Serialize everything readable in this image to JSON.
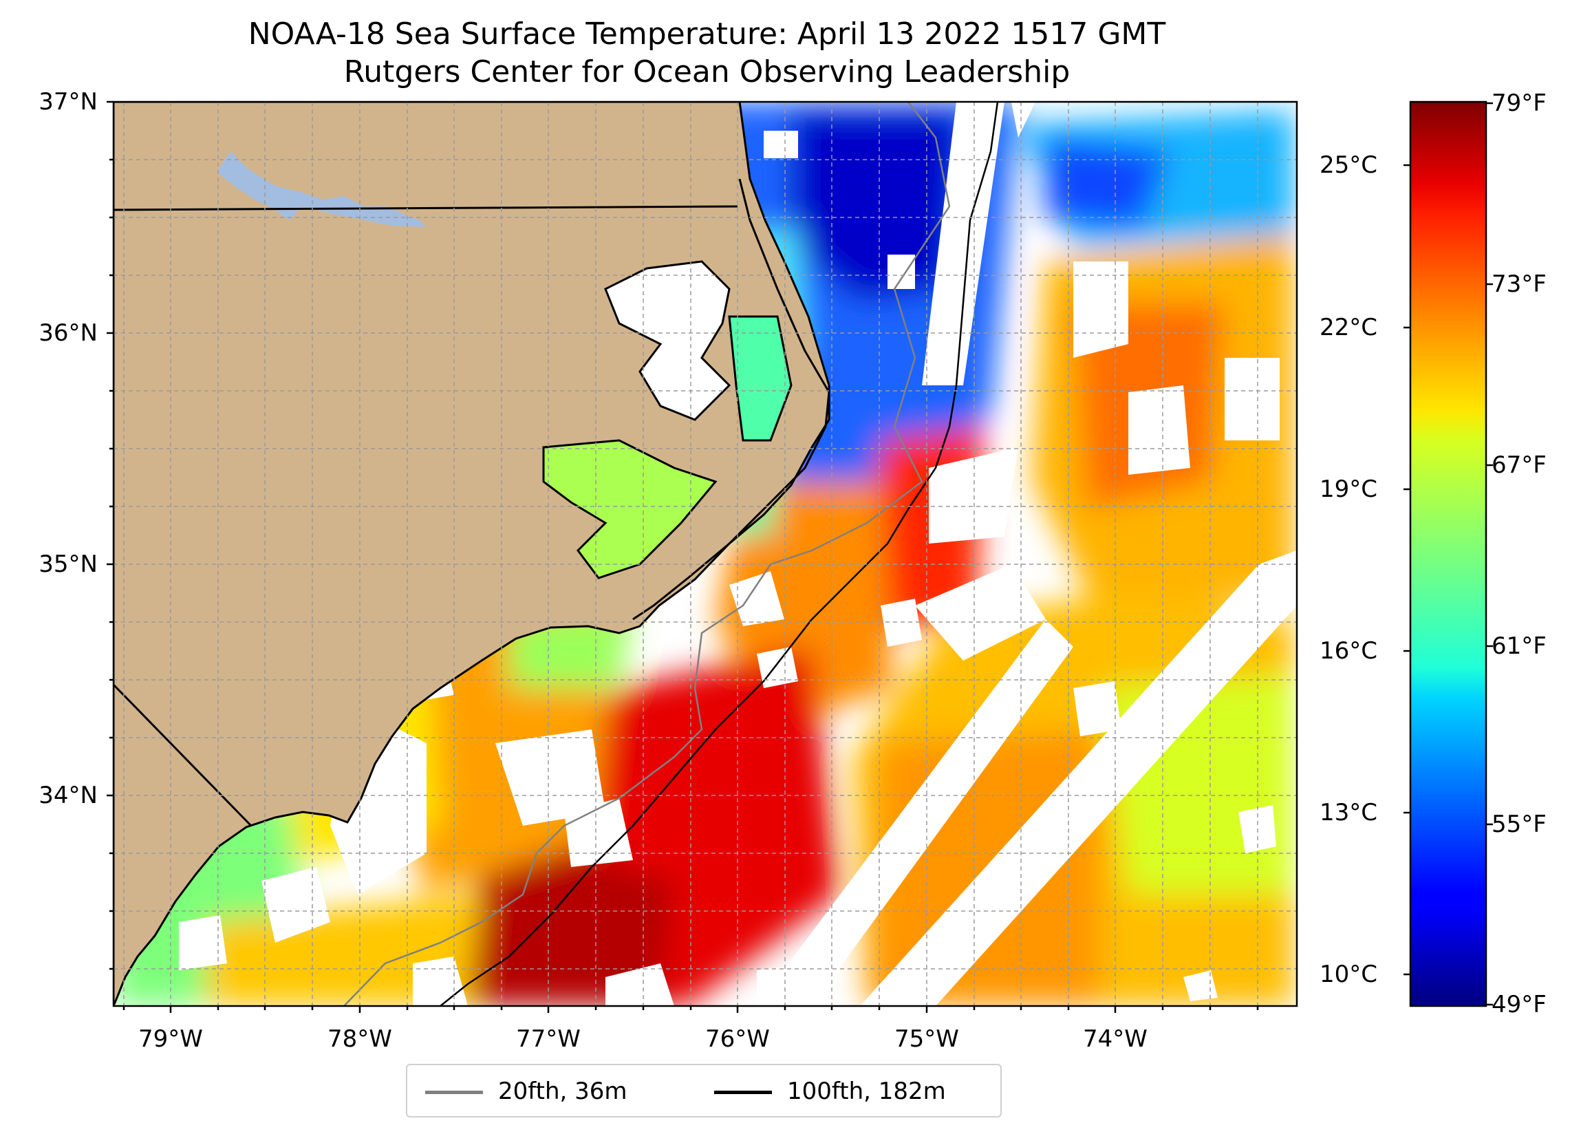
{
  "title": "NOAA-18 Sea Surface Temperature: April 13 2022 1517 GMT",
  "subtitle": "Rutgers Center for Ocean Observing Leadership",
  "map": {
    "lat_range": [
      33.1,
      37.0
    ],
    "lon_range": [
      -79.3,
      -73.15
    ],
    "lat_ticks": [
      "37°N",
      "36°N",
      "35°N",
      "34°N"
    ],
    "lon_ticks": [
      "79°W",
      "78°W",
      "77°W",
      "76°W",
      "75°W",
      "74°W"
    ],
    "land_color": "#d2b48c",
    "lake_color": "#a2bde0",
    "gridlines": true
  },
  "colorbar": {
    "colormap": "jet",
    "fahrenheit_ticks": [
      "79°F",
      "73°F",
      "67°F",
      "61°F",
      "55°F",
      "49°F"
    ],
    "celsius_ticks": [
      "25°C",
      "22°C",
      "19°C",
      "16°C",
      "13°C",
      "10°C"
    ]
  },
  "legend": {
    "items": [
      {
        "label": "20fth, 36m",
        "color": "#808080"
      },
      {
        "label": "100fth, 182m",
        "color": "#000000"
      }
    ]
  }
}
